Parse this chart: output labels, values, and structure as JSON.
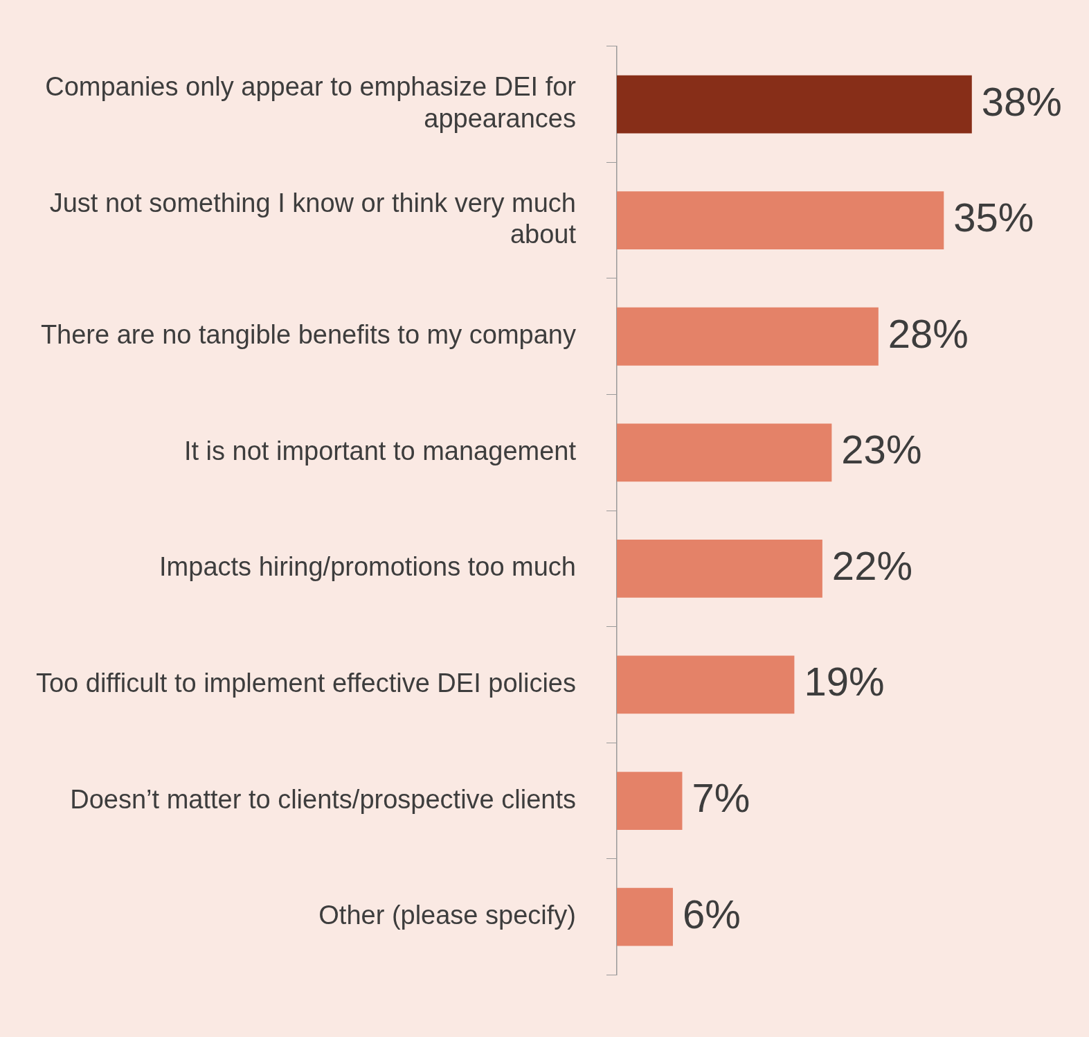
{
  "chart_data": {
    "type": "bar",
    "orientation": "horizontal",
    "categories": [
      "Companies only appear to emphasize DEI for appearances",
      "Just not something I know or think very much about",
      "There are no tangible benefits to my company",
      "It is not important to management",
      "Impacts hiring/promotions too much",
      "Too difficult to implement effective DEI policies",
      "Doesn’t matter to clients/prospective clients",
      "Other (please specify)"
    ],
    "values": [
      38,
      35,
      28,
      23,
      22,
      19,
      7,
      6
    ],
    "colors": [
      "#872e18",
      "#e48268",
      "#e48268",
      "#e48268",
      "#e48268",
      "#e48268",
      "#e48268",
      "#e48268"
    ],
    "value_labels": [
      "38%",
      "35%",
      "28%",
      "23%",
      "22%",
      "19%",
      "7%",
      "6%"
    ]
  }
}
